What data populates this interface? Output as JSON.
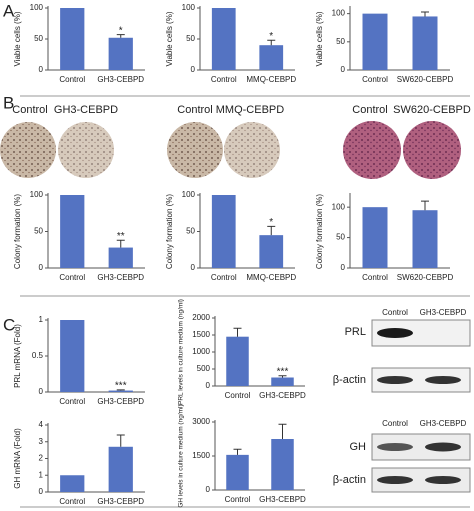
{
  "panels": [
    "A",
    "B",
    "C"
  ],
  "plates": [
    {
      "left": "Control",
      "right": "GH3-CEBPD"
    },
    {
      "left": "Control",
      "right": "MMQ-CEBPD"
    },
    {
      "left": "Control",
      "right": "SW620-CEBPD"
    }
  ],
  "blots": [
    {
      "lanes": [
        "Control",
        "GH3-CEBPD"
      ],
      "rows": [
        "PRL",
        "β-actin"
      ]
    },
    {
      "lanes": [
        "Control",
        "GH3-CEBPD"
      ],
      "rows": [
        "GH",
        "β-actin"
      ]
    }
  ],
  "chart_data": [
    {
      "type": "bar",
      "y_label": "Viable cells (%)",
      "categories": [
        "Control",
        "GH3-CEBPD"
      ],
      "values": [
        100,
        52
      ],
      "errors": [
        null,
        5
      ],
      "color": "#5473c2",
      "ylim": [
        0,
        100
      ],
      "yticks": [
        0,
        50,
        100
      ],
      "annotations": [
        {
          "x": "GH3-CEBPD",
          "text": "*"
        }
      ]
    },
    {
      "type": "bar",
      "y_label": "Viable cells (%)",
      "categories": [
        "Control",
        "MMQ-CEBPD"
      ],
      "values": [
        100,
        40
      ],
      "errors": [
        null,
        8
      ],
      "color": "#5473c2",
      "ylim": [
        0,
        100
      ],
      "yticks": [
        0,
        50,
        100
      ],
      "annotations": [
        {
          "x": "MMQ-CEBPD",
          "text": "*"
        }
      ]
    },
    {
      "type": "bar",
      "y_label": "Viable cells (%)",
      "categories": [
        "Control",
        "SW620-CEBPD"
      ],
      "values": [
        100,
        95
      ],
      "errors": [
        null,
        8
      ],
      "color": "#5473c2",
      "ylim": [
        0,
        110
      ],
      "yticks": [
        0,
        50,
        100
      ]
    },
    {
      "type": "bar",
      "y_label": "Colony formation (%)",
      "categories": [
        "Control",
        "GH3-CEBPD"
      ],
      "values": [
        100,
        28
      ],
      "errors": [
        null,
        10
      ],
      "color": "#5473c2",
      "ylim": [
        0,
        100
      ],
      "yticks": [
        0,
        50,
        100
      ],
      "annotations": [
        {
          "x": "GH3-CEBPD",
          "text": "**"
        }
      ]
    },
    {
      "type": "bar",
      "y_label": "Colony formation (%)",
      "categories": [
        "Control",
        "MMQ-CEBPD"
      ],
      "values": [
        100,
        45
      ],
      "errors": [
        null,
        12
      ],
      "color": "#5473c2",
      "ylim": [
        0,
        100
      ],
      "yticks": [
        0,
        50,
        100
      ],
      "annotations": [
        {
          "x": "MMQ-CEBPD",
          "text": "*"
        }
      ]
    },
    {
      "type": "bar",
      "y_label": "Colony formation (%)",
      "categories": [
        "Control",
        "SW620-CEBPD"
      ],
      "values": [
        100,
        95
      ],
      "errors": [
        null,
        15
      ],
      "color": "#5473c2",
      "ylim": [
        0,
        120
      ],
      "yticks": [
        0,
        50,
        100
      ]
    },
    {
      "type": "bar",
      "y_label": "PRL mRNA (Fold)",
      "categories": [
        "Control",
        "GH3-CEBPD"
      ],
      "values": [
        1,
        0.02
      ],
      "errors": [
        null,
        0.01
      ],
      "color": "#5473c2",
      "ylim": [
        0,
        1
      ],
      "yticks": [
        0,
        0.5,
        1
      ],
      "annotations": [
        {
          "x": "GH3-CEBPD",
          "text": "***"
        }
      ]
    },
    {
      "type": "bar",
      "y_label": "PRL levels in culture medium (ng/ml)",
      "categories": [
        "Control",
        "GH3-CEBPD"
      ],
      "values": [
        1450,
        250
      ],
      "errors": [
        250,
        50
      ],
      "color": "#5473c2",
      "ylim": [
        0,
        2000
      ],
      "yticks": [
        0,
        500,
        1000,
        1500,
        2000
      ],
      "annotations": [
        {
          "x": "GH3-CEBPD",
          "text": "***"
        }
      ]
    },
    {
      "type": "bar",
      "y_label": "GH mRNA (Fold)",
      "categories": [
        "Control",
        "GH3-CEBPD"
      ],
      "values": [
        1,
        2.7
      ],
      "errors": [
        null,
        0.7
      ],
      "color": "#5473c2",
      "ylim": [
        0,
        4
      ],
      "yticks": [
        0,
        1,
        2,
        3,
        4
      ]
    },
    {
      "type": "bar",
      "y_label": "GH levels in culture medium (ng/ml)",
      "categories": [
        "Control",
        "GH3-CEBPD"
      ],
      "values": [
        1550,
        2250
      ],
      "errors": [
        250,
        650
      ],
      "color": "#5473c2",
      "ylim": [
        0,
        3000
      ],
      "yticks": [
        0,
        1500,
        3000
      ]
    }
  ]
}
